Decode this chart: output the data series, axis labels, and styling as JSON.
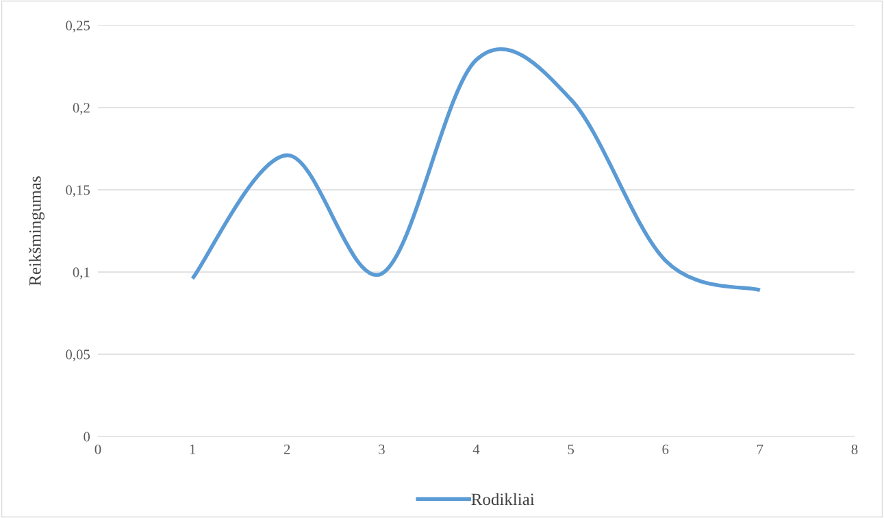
{
  "chart_data": {
    "type": "line",
    "ylabel": "Reikšmingumas",
    "x": [
      1,
      2,
      3,
      4,
      5,
      6,
      7
    ],
    "series": [
      {
        "name": "Rodikliai",
        "color": "#5b9bd5",
        "values": [
          0.096,
          0.171,
          0.099,
          0.229,
          0.205,
          0.107,
          0.089
        ]
      }
    ],
    "xlim": [
      0,
      8
    ],
    "xticks": [
      0,
      1,
      2,
      3,
      4,
      5,
      6,
      7,
      8
    ],
    "ylim": [
      0,
      0.25
    ],
    "yticks": [
      {
        "value": 0,
        "label": "0"
      },
      {
        "value": 0.05,
        "label": "0,05"
      },
      {
        "value": 0.1,
        "label": "0,1"
      },
      {
        "value": 0.15,
        "label": "0,15"
      },
      {
        "value": 0.2,
        "label": "0,2"
      },
      {
        "value": 0.25,
        "label": "0,25"
      }
    ],
    "grid": "y",
    "legend": "bottom",
    "marker": "none",
    "line_style": "solid"
  }
}
